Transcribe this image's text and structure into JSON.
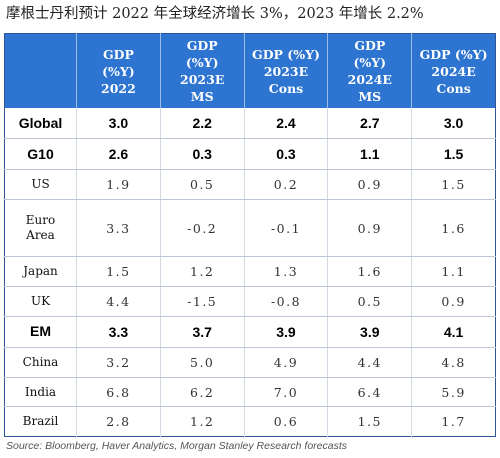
{
  "title": "摩根士丹利预计 2022 年全球经济增长 3%，2023 年增长 2.2%",
  "headers": [
    "",
    [
      "GDP",
      "(%Y)",
      "2022"
    ],
    [
      "GDP",
      "(%Y)",
      "2023E",
      "MS"
    ],
    [
      "GDP (%Y)",
      "2023E",
      "Cons"
    ],
    [
      "GDP",
      "(%Y)",
      "2024E",
      "MS"
    ],
    [
      "GDP (%Y)",
      "2024E",
      "Cons"
    ]
  ],
  "rows": [
    {
      "label": [
        "Global"
      ],
      "bold": true,
      "values": [
        "3.0",
        "2.2",
        "2.4",
        "2.7",
        "3.0"
      ]
    },
    {
      "label": [
        "G10"
      ],
      "bold": true,
      "values": [
        "2.6",
        "0.3",
        "0.3",
        "1.1",
        "1.5"
      ]
    },
    {
      "label": [
        "US"
      ],
      "bold": false,
      "values": [
        "1.9",
        "0.5",
        "0.2",
        "0.9",
        "1.5"
      ]
    },
    {
      "label": [
        "Euro",
        "Area"
      ],
      "bold": false,
      "values": [
        "3.3",
        "-0.2",
        "-0.1",
        "0.9",
        "1.6"
      ]
    },
    {
      "label": [
        "Japan"
      ],
      "bold": false,
      "values": [
        "1.5",
        "1.2",
        "1.3",
        "1.6",
        "1.1"
      ]
    },
    {
      "label": [
        "UK"
      ],
      "bold": false,
      "values": [
        "4.4",
        "-1.5",
        "-0.8",
        "0.5",
        "0.9"
      ]
    },
    {
      "label": [
        "EM"
      ],
      "bold": true,
      "values": [
        "3.3",
        "3.7",
        "3.9",
        "3.9",
        "4.1"
      ]
    },
    {
      "label": [
        "China"
      ],
      "bold": false,
      "values": [
        "3.2",
        "5.0",
        "4.9",
        "4.4",
        "4.8"
      ]
    },
    {
      "label": [
        "India"
      ],
      "bold": false,
      "values": [
        "6.8",
        "6.2",
        "7.0",
        "6.4",
        "5.9"
      ]
    },
    {
      "label": [
        "Brazil"
      ],
      "bold": false,
      "values": [
        "2.8",
        "1.2",
        "0.6",
        "1.5",
        "1.7"
      ]
    }
  ],
  "source": "Source: Bloomberg, Haver Analytics, Morgan Stanley Research forecasts",
  "colors": {
    "header_bg": "#2e75d2",
    "border": "#2f5597"
  }
}
